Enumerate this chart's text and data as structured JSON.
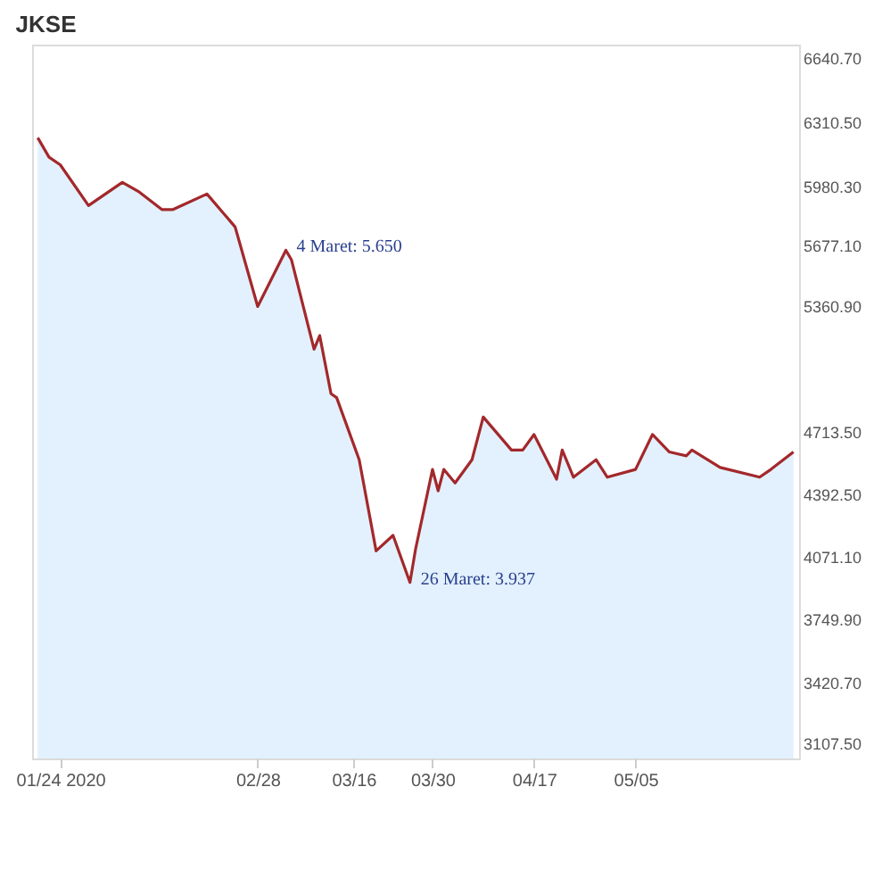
{
  "chart_data": {
    "type": "area",
    "title": "JKSE",
    "x": [
      "2020-01-20",
      "2020-01-22",
      "2020-01-24",
      "2020-01-29",
      "2020-02-04",
      "2020-02-07",
      "2020-02-11",
      "2020-02-13",
      "2020-02-19",
      "2020-02-24",
      "2020-02-28",
      "2020-03-04",
      "2020-03-05",
      "2020-03-09",
      "2020-03-10",
      "2020-03-12",
      "2020-03-13",
      "2020-03-17",
      "2020-03-20",
      "2020-03-23",
      "2020-03-26",
      "2020-03-27",
      "2020-03-30",
      "2020-03-31",
      "2020-04-01",
      "2020-04-03",
      "2020-04-06",
      "2020-04-08",
      "2020-04-13",
      "2020-04-15",
      "2020-04-17",
      "2020-04-21",
      "2020-04-22",
      "2020-04-24",
      "2020-04-28",
      "2020-04-30",
      "2020-05-05",
      "2020-05-08",
      "2020-05-11",
      "2020-05-14",
      "2020-05-15",
      "2020-05-20",
      "2020-05-27",
      "2020-05-29",
      "2020-06-02"
    ],
    "series": [
      {
        "color": "#a3282b",
        "values": [
          6230,
          6130,
          6090,
          5880,
          6000,
          5950,
          5860,
          5860,
          5940,
          5770,
          5360,
          5650,
          5600,
          5140,
          5210,
          4910,
          4890,
          4570,
          4100,
          4180,
          3937,
          4110,
          4520,
          4410,
          4520,
          4450,
          4570,
          4790,
          4620,
          4620,
          4700,
          4470,
          4620,
          4480,
          4570,
          4480,
          4520,
          4700,
          4610,
          4590,
          4620,
          4530,
          4480,
          4520,
          4610
        ]
      }
    ],
    "xlim": [
      "2020-01-19",
      "2020-06-03"
    ],
    "xticks": [
      {
        "value": "2020-01-24",
        "label": "01/24 2020"
      },
      {
        "value": "2020-02-28",
        "label": "02/28"
      },
      {
        "value": "2020-03-16",
        "label": "03/16"
      },
      {
        "value": "2020-03-30",
        "label": "03/30"
      },
      {
        "value": "2020-04-17",
        "label": "04/17"
      },
      {
        "value": "2020-05-05",
        "label": "05/05"
      }
    ],
    "ylim": [
      3030,
      6710
    ],
    "yticks": [
      {
        "value": 6640.7,
        "label": "6640.70"
      },
      {
        "value": 6310.5,
        "label": "6310.50"
      },
      {
        "value": 5980.3,
        "label": "5980.30"
      },
      {
        "value": 5677.1,
        "label": "5677.10"
      },
      {
        "value": 5360.9,
        "label": "5360.90"
      },
      {
        "value": 4713.5,
        "label": "4713.50"
      },
      {
        "value": 4392.5,
        "label": "4392.50"
      },
      {
        "value": 4071.1,
        "label": "4071.10"
      },
      {
        "value": 3749.9,
        "label": "3749.90"
      },
      {
        "value": 3420.7,
        "label": "3420.70"
      },
      {
        "value": 3107.5,
        "label": "3107.50"
      }
    ],
    "annotations": [
      {
        "text": "4 Maret: 5.650",
        "x": "2020-03-04",
        "y": 5650
      },
      {
        "text": "26 Maret: 3.937",
        "x": "2020-03-26",
        "y": 3937
      }
    ],
    "grid": false
  }
}
